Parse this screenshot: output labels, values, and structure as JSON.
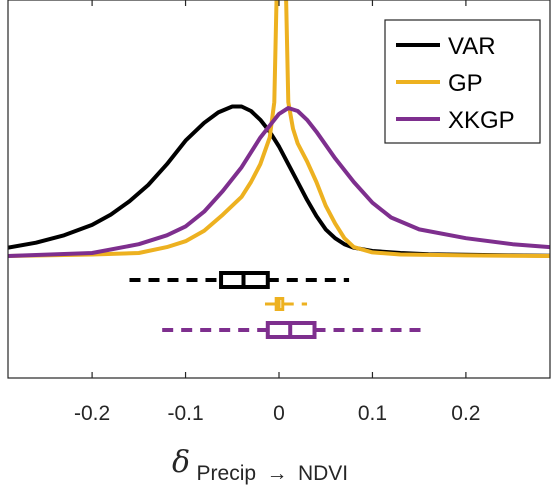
{
  "chart_data": {
    "type": "line",
    "title": "",
    "xlabel": {
      "symbol": "δ",
      "subscript_from": "Precip",
      "arrow": "→",
      "subscript_to": "NDVI"
    },
    "ylabel": "",
    "xlim": [
      -0.29,
      0.29
    ],
    "xticks": [
      -0.2,
      -0.1,
      0,
      0.1,
      0.2
    ],
    "xtick_labels": [
      "-0.2",
      "-0.1",
      "0",
      "0.1",
      "0.2"
    ],
    "grid": false,
    "legend_position": "top-right",
    "density_ylim": [
      0,
      1.0
    ],
    "series": [
      {
        "name": "VAR",
        "color": "#000000",
        "x": [
          -0.29,
          -0.26,
          -0.23,
          -0.2,
          -0.18,
          -0.16,
          -0.14,
          -0.12,
          -0.1,
          -0.08,
          -0.065,
          -0.05,
          -0.04,
          -0.03,
          -0.02,
          -0.01,
          0,
          0.01,
          0.02,
          0.03,
          0.04,
          0.05,
          0.06,
          0.07,
          0.08,
          0.1,
          0.13,
          0.16,
          0.2,
          0.25,
          0.29
        ],
        "y": [
          0.028,
          0.045,
          0.07,
          0.105,
          0.14,
          0.185,
          0.24,
          0.31,
          0.39,
          0.45,
          0.485,
          0.505,
          0.505,
          0.49,
          0.46,
          0.42,
          0.37,
          0.31,
          0.25,
          0.19,
          0.135,
          0.09,
          0.06,
          0.04,
          0.028,
          0.017,
          0.01,
          0.006,
          0.004,
          0.002,
          0.001
        ]
      },
      {
        "name": "GP",
        "color": "#EDB120",
        "x": [
          -0.29,
          -0.2,
          -0.15,
          -0.12,
          -0.1,
          -0.08,
          -0.06,
          -0.04,
          -0.03,
          -0.02,
          -0.01,
          -0.005,
          0,
          0.005,
          0.01,
          0.015,
          0.02,
          0.03,
          0.04,
          0.05,
          0.06,
          0.07,
          0.08,
          0.1,
          0.13,
          0.2,
          0.29
        ],
        "y": [
          0.0,
          0.005,
          0.01,
          0.03,
          0.05,
          0.085,
          0.14,
          0.2,
          0.25,
          0.31,
          0.4,
          0.52,
          1.25,
          1.25,
          0.52,
          0.43,
          0.38,
          0.32,
          0.25,
          0.17,
          0.11,
          0.06,
          0.03,
          0.012,
          0.005,
          0.002,
          0.0
        ]
      },
      {
        "name": "XKGP",
        "color": "#7E2F8E",
        "x": [
          -0.29,
          -0.2,
          -0.15,
          -0.12,
          -0.1,
          -0.08,
          -0.06,
          -0.04,
          -0.02,
          0,
          0.01,
          0.02,
          0.03,
          0.04,
          0.06,
          0.08,
          0.1,
          0.12,
          0.15,
          0.2,
          0.25,
          0.29
        ],
        "y": [
          0.0,
          0.01,
          0.04,
          0.07,
          0.1,
          0.15,
          0.22,
          0.3,
          0.4,
          0.48,
          0.5,
          0.49,
          0.46,
          0.42,
          0.33,
          0.25,
          0.18,
          0.13,
          0.09,
          0.06,
          0.04,
          0.03
        ]
      }
    ],
    "boxplots": [
      {
        "name": "VAR",
        "color": "#000000",
        "whisker_low": -0.16,
        "q1": -0.062,
        "median": -0.038,
        "q3": -0.012,
        "whisker_high": 0.075
      },
      {
        "name": "GP",
        "color": "#EDB120",
        "whisker_low": -0.015,
        "q1": -0.003,
        "median": 0.0,
        "q3": 0.004,
        "whisker_high": 0.03
      },
      {
        "name": "XKGP",
        "color": "#7E2F8E",
        "whisker_low": -0.125,
        "q1": -0.012,
        "median": 0.012,
        "q3": 0.038,
        "whisker_high": 0.155
      }
    ]
  }
}
